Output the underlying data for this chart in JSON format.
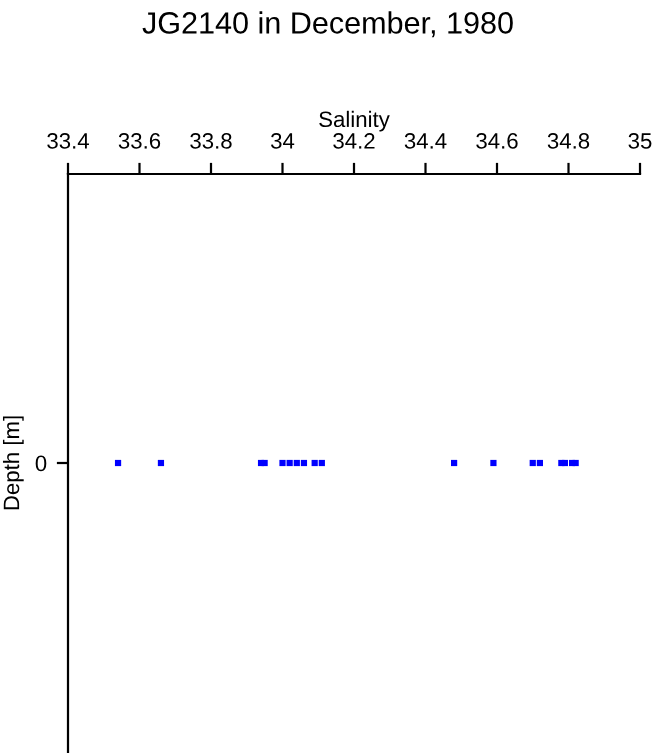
{
  "chart_data": {
    "type": "scatter",
    "orientation": "horizontal",
    "title": "JG2140 in December, 1980",
    "xlabel": "Salinity",
    "ylabel": "Depth [m]",
    "categories": [
      "0"
    ],
    "series": [
      {
        "color": "#0000ff",
        "values": [
          33.54
        ]
      },
      {
        "color": "#0000ff",
        "values": [
          33.66
        ]
      },
      {
        "color": "#0000ff",
        "values": [
          33.94
        ]
      },
      {
        "color": "#0000ff",
        "values": [
          33.95
        ]
      },
      {
        "color": "#0000ff",
        "values": [
          34.0
        ]
      },
      {
        "color": "#0000ff",
        "values": [
          34.02
        ]
      },
      {
        "color": "#0000ff",
        "values": [
          34.04
        ]
      },
      {
        "color": "#0000ff",
        "values": [
          34.06
        ]
      },
      {
        "color": "#0000ff",
        "values": [
          34.09
        ]
      },
      {
        "color": "#0000ff",
        "values": [
          34.11
        ]
      },
      {
        "color": "#0000ff",
        "values": [
          34.48
        ]
      },
      {
        "color": "#0000ff",
        "values": [
          34.59
        ]
      },
      {
        "color": "#0000ff",
        "values": [
          34.7
        ]
      },
      {
        "color": "#0000ff",
        "values": [
          34.72
        ]
      },
      {
        "color": "#0000ff",
        "values": [
          34.78
        ]
      },
      {
        "color": "#0000ff",
        "values": [
          34.79
        ]
      },
      {
        "color": "#0000ff",
        "values": [
          34.81
        ]
      },
      {
        "color": "#0000ff",
        "values": [
          34.82
        ]
      }
    ],
    "xlim": [
      33.4,
      35
    ],
    "xticks": [
      33.4,
      33.6,
      33.8,
      34,
      34.2,
      34.4,
      34.6,
      34.8,
      35
    ],
    "marker": "square",
    "grid": false,
    "legend": false
  }
}
